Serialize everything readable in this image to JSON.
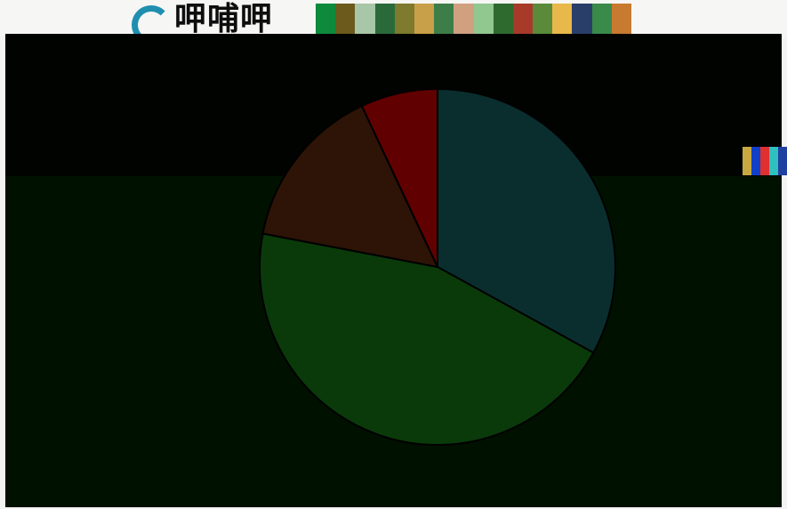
{
  "header": {
    "logo_text": "呷哺呷"
  },
  "colors": {
    "mosaic": [
      "#0d8a3c",
      "#6b5a1c",
      "#a8c6a8",
      "#2a6a3a",
      "#7e7a2e",
      "#c8a04a",
      "#3d7e48",
      "#d0a080",
      "#90c890",
      "#2e6a2e",
      "#a83a2a",
      "#5a8a3a",
      "#e8b84a",
      "#2a3e6a",
      "#3a8a4a",
      "#c87a30"
    ],
    "side_strip": [
      "#c8a840",
      "#1040c8",
      "#e03030",
      "#30c0c0",
      "#2040a0"
    ],
    "slice_blue": "#0a2e2e",
    "slice_green": "#0a3a0a",
    "slice_brown": "#2e1406",
    "slice_red": "#600000"
  },
  "chart_data": {
    "type": "pie",
    "title": "",
    "slices": [
      {
        "value": 33,
        "color": "#0a2e2e"
      },
      {
        "value": 45,
        "color": "#0a3a0a"
      },
      {
        "value": 15,
        "color": "#2e1406"
      },
      {
        "value": 7,
        "color": "#600000"
      }
    ]
  }
}
